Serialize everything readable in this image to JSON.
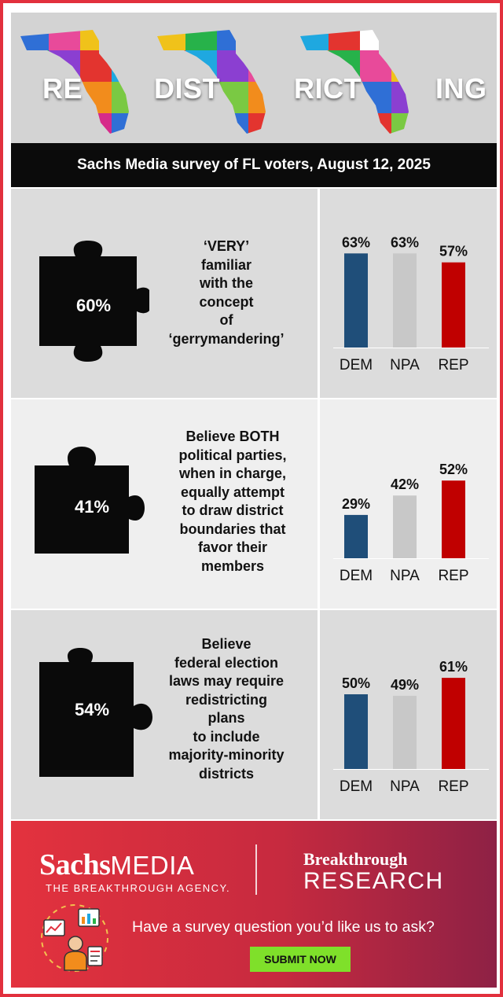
{
  "header": {
    "title_parts": [
      "RE",
      "DIST",
      "RICT",
      "ING"
    ],
    "subtitle": "Sachs Media survey of FL voters, August 12, 2025"
  },
  "colors": {
    "DEM": "#1f4e79",
    "NPA": "#c8c8c8",
    "REP": "#c00000",
    "accent": "#e2303d",
    "button": "#7fe02a"
  },
  "icons": [
    "florida-puzzle-map",
    "puzzle-piece",
    "survey-icon"
  ],
  "panels": [
    {
      "overall": "60%",
      "question": "‘VERY’\nfamiliar\nwith the\nconcept\nof\n‘gerrymandering’"
    },
    {
      "overall": "41%",
      "question": "Believe BOTH\npolitical parties,\nwhen in charge,\nequally attempt\nto draw district\nboundaries that\nfavor their\nmembers"
    },
    {
      "overall": "54%",
      "question": "Believe\nfederal election\nlaws may require\nredistricting\nplans\nto include\nmajority-minority\ndistricts"
    }
  ],
  "chart_data": [
    {
      "type": "bar",
      "categories": [
        "DEM",
        "NPA",
        "REP"
      ],
      "values": [
        63,
        63,
        57
      ],
      "value_labels": [
        "63%",
        "63%",
        "57%"
      ]
    },
    {
      "type": "bar",
      "categories": [
        "DEM",
        "NPA",
        "REP"
      ],
      "values": [
        29,
        42,
        52
      ],
      "value_labels": [
        "29%",
        "42%",
        "52%"
      ]
    },
    {
      "type": "bar",
      "categories": [
        "DEM",
        "NPA",
        "REP"
      ],
      "values": [
        50,
        49,
        61
      ],
      "value_labels": [
        "50%",
        "49%",
        "61%"
      ]
    }
  ],
  "footer": {
    "brand_sachs_bold": "Sachs",
    "brand_sachs_light": "MEDIA",
    "brand_tagline": "THE BREAKTHROUGH AGENCY.",
    "brand_breakthrough": "Breakthrough",
    "brand_research": "RESEARCH",
    "cta_text": "Have a survey question you’d like us to ask?",
    "submit_label": "SUBMIT NOW"
  }
}
